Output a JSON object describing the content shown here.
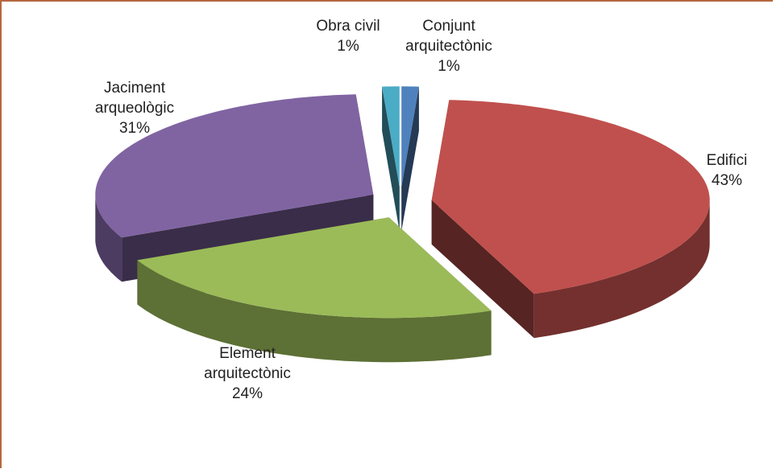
{
  "chart_data": {
    "type": "pie",
    "categories": [
      "Conjunt arquitectònic",
      "Edifici",
      "Element arquitectònic",
      "Jaciment arqueològic",
      "Obra civil"
    ],
    "values": [
      1,
      43,
      24,
      31,
      1
    ],
    "value_labels": [
      "1%",
      "43%",
      "24%",
      "31%",
      "1%"
    ],
    "colors": [
      "#4f81bd",
      "#c0504d",
      "#9bbb59",
      "#8064a2",
      "#4bacc6"
    ]
  }
}
